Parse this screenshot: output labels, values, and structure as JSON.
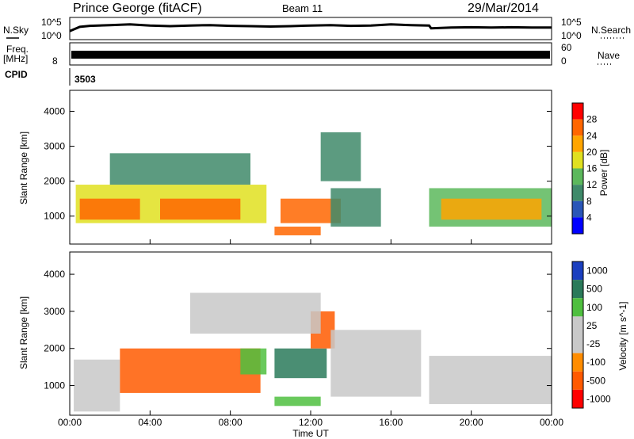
{
  "header": {
    "station": "Prince George (fitACF)",
    "beam": "Beam 11",
    "date": "29/Mar/2014"
  },
  "top_panels": {
    "nsky_label": "N.Sky",
    "nsearch_label": "N.Search",
    "log_top": "10^5",
    "log_bottom": "10^0",
    "freq_label_1": "Freq.",
    "freq_label_2": "[MHz]",
    "freq_tick_left": "8",
    "nave_label": "Nave",
    "nave_tick_top": "60",
    "nave_tick_bottom": "0",
    "cpid_label": "CPID",
    "cpid_value": "3503"
  },
  "time_axis": {
    "label": "Time UT",
    "ticks": [
      "00:00",
      "04:00",
      "08:00",
      "12:00",
      "16:00",
      "20:00",
      "00:00"
    ]
  },
  "colors": {
    "power": [
      "#0000ff",
      "#2a56b8",
      "#3f8a6a",
      "#5cb85c",
      "#e0e020",
      "#ffa500",
      "#ff6600",
      "#ff0000"
    ],
    "velocity": [
      "#1b3fbf",
      "#2a7a5a",
      "#4fbf3f",
      "#c8c8c8",
      "#c8c8c8",
      "#ff8c00",
      "#ff5a00",
      "#ff0000"
    ]
  },
  "chart_data": [
    {
      "type": "heatmap",
      "quantity": "power",
      "ylabel": "Slant Range [km]",
      "xlabel": "Time UT",
      "ylim": [
        200,
        4600
      ],
      "yticks": [
        "1000",
        "2000",
        "3000",
        "4000"
      ],
      "colorbar_label": "Power [dB]",
      "colorbar_ticks": [
        "4",
        "8",
        "12",
        "16",
        "20",
        "24",
        "28"
      ],
      "colorbar_range": [
        0,
        32
      ],
      "regions": [
        {
          "t0": 0.3,
          "t1": 9.8,
          "r0": 800,
          "r1": 1900,
          "value": 18
        },
        {
          "t0": 0.5,
          "t1": 3.5,
          "r0": 900,
          "r1": 1500,
          "value": 26
        },
        {
          "t0": 4.5,
          "t1": 8.5,
          "r0": 900,
          "r1": 1500,
          "value": 25
        },
        {
          "t0": 10.5,
          "t1": 13.5,
          "r0": 800,
          "r1": 1500,
          "value": 26
        },
        {
          "t0": 10.2,
          "t1": 12.5,
          "r0": 450,
          "r1": 700,
          "value": 24
        },
        {
          "t0": 13.0,
          "t1": 15.5,
          "r0": 700,
          "r1": 1800,
          "value": 10
        },
        {
          "t0": 17.9,
          "t1": 24.0,
          "r0": 700,
          "r1": 1800,
          "value": 14
        },
        {
          "t0": 18.5,
          "t1": 23.5,
          "r0": 900,
          "r1": 1500,
          "value": 20
        },
        {
          "t0": 2.0,
          "t1": 9.0,
          "r0": 1900,
          "r1": 2800,
          "value": 8
        },
        {
          "t0": 12.5,
          "t1": 14.5,
          "r0": 2000,
          "r1": 3400,
          "value": 9
        }
      ]
    },
    {
      "type": "heatmap",
      "quantity": "velocity",
      "ylabel": "Slant Range [km]",
      "xlabel": "Time UT",
      "ylim": [
        200,
        4600
      ],
      "yticks": [
        "1000",
        "2000",
        "3000",
        "4000"
      ],
      "colorbar_label": "Velocity [m s^-1]",
      "colorbar_ticks": [
        "1000",
        "500",
        "100",
        "25",
        "-25",
        "-100",
        "-500",
        "-1000"
      ],
      "regions": [
        {
          "t0": 0.2,
          "t1": 2.5,
          "r0": 300,
          "r1": 1700,
          "value": 0
        },
        {
          "t0": 2.5,
          "t1": 9.5,
          "r0": 800,
          "r1": 2000,
          "value": -300
        },
        {
          "t0": 8.5,
          "t1": 9.8,
          "r0": 1300,
          "r1": 2000,
          "value": 200
        },
        {
          "t0": 10.2,
          "t1": 12.8,
          "r0": 1200,
          "r1": 2000,
          "value": 300
        },
        {
          "t0": 10.2,
          "t1": 12.5,
          "r0": 450,
          "r1": 700,
          "value": 150
        },
        {
          "t0": 12.0,
          "t1": 13.2,
          "r0": 2000,
          "r1": 3000,
          "value": -300
        },
        {
          "t0": 13.0,
          "t1": 17.5,
          "r0": 700,
          "r1": 2500,
          "value": 0
        },
        {
          "t0": 17.9,
          "t1": 24.0,
          "r0": 500,
          "r1": 1800,
          "value": 0
        },
        {
          "t0": 6.0,
          "t1": 12.5,
          "r0": 2400,
          "r1": 3500,
          "value": 0
        }
      ]
    },
    {
      "type": "line",
      "quantity": "N.Sky / N.Search",
      "x": [
        0,
        0.5,
        1,
        2,
        3,
        4,
        5,
        6,
        7,
        8,
        9,
        10,
        11,
        12,
        13,
        14,
        15,
        16,
        17,
        17.9,
        18,
        19,
        20,
        21,
        22,
        23,
        24
      ],
      "values": [
        2.0,
        3.2,
        3.5,
        3.7,
        3.9,
        3.6,
        3.4,
        3.6,
        3.7,
        3.5,
        3.4,
        3.3,
        3.4,
        3.6,
        3.7,
        3.5,
        3.6,
        3.9,
        3.7,
        3.6,
        2.8,
        3.0,
        3.1,
        3.0,
        3.1,
        3.0,
        3.0
      ],
      "ylim": [
        0,
        5
      ]
    },
    {
      "type": "area",
      "quantity": "Freq / Nave",
      "x": [
        0,
        24
      ],
      "values": [
        34,
        34
      ],
      "ylim": [
        0,
        60
      ]
    }
  ]
}
